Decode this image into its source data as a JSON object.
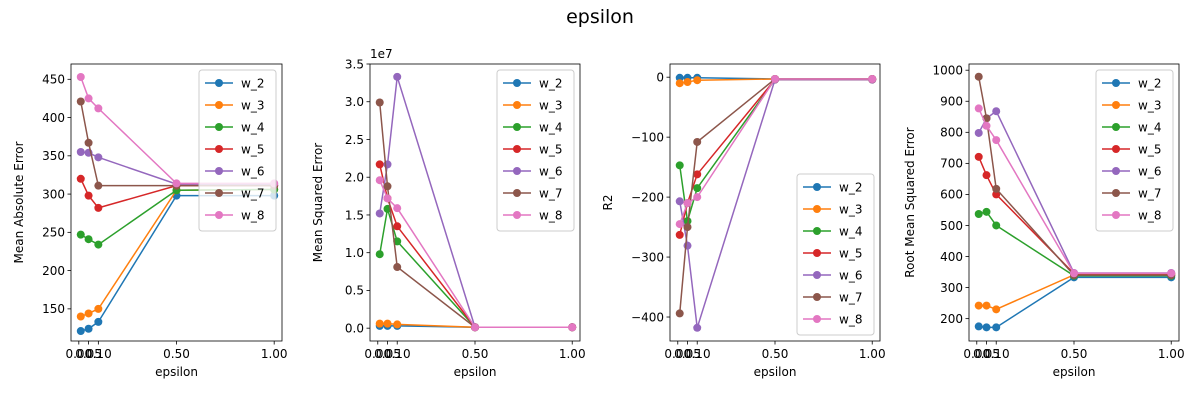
{
  "figure": {
    "title": "epsilon"
  },
  "colors": {
    "w_2": "#1f77b4",
    "w_3": "#ff7f0e",
    "w_4": "#2ca02c",
    "w_5": "#d62728",
    "w_6": "#9467bd",
    "w_7": "#8c564b",
    "w_8": "#e377c2"
  },
  "chart_data": [
    {
      "type": "line",
      "xlabel": "epsilon",
      "ylabel": "Mean Absolute Error",
      "x": [
        0.01,
        0.05,
        0.1,
        0.5,
        1.0
      ],
      "xticks": [
        0.0,
        0.05,
        0.1,
        0.5,
        1.0
      ],
      "xtick_labels": [
        "0.00",
        "0.05",
        "0.10",
        "0.50",
        "1.00"
      ],
      "xlim": [
        -0.04,
        1.04
      ],
      "ylim": [
        108,
        470
      ],
      "yticks": [
        150,
        200,
        250,
        300,
        350,
        400,
        450
      ],
      "ytick_labels": [
        "150",
        "200",
        "250",
        "300",
        "350",
        "400",
        "450"
      ],
      "y_offset_text": "",
      "legend": "upper right",
      "series": [
        {
          "name": "w_2",
          "values": [
            121,
            124,
            133,
            298,
            298
          ]
        },
        {
          "name": "w_3",
          "values": [
            140,
            144,
            150,
            305,
            306
          ]
        },
        {
          "name": "w_4",
          "values": [
            247,
            241,
            234,
            305,
            306
          ]
        },
        {
          "name": "w_5",
          "values": [
            320,
            298,
            282,
            311,
            311
          ]
        },
        {
          "name": "w_6",
          "values": [
            355,
            354,
            348,
            313,
            313
          ]
        },
        {
          "name": "w_7",
          "values": [
            421,
            367,
            311,
            311,
            311
          ]
        },
        {
          "name": "w_8",
          "values": [
            453,
            425,
            412,
            314,
            314
          ]
        }
      ]
    },
    {
      "type": "line",
      "xlabel": "epsilon",
      "ylabel": "Mean Squared Error",
      "x": [
        0.01,
        0.05,
        0.1,
        0.5,
        1.0
      ],
      "xticks": [
        0.0,
        0.05,
        0.1,
        0.5,
        1.0
      ],
      "xtick_labels": [
        "0.00",
        "0.05",
        "0.10",
        "0.50",
        "1.00"
      ],
      "xlim": [
        -0.04,
        1.04
      ],
      "ylim": [
        -0.17,
        3.5
      ],
      "yticks": [
        0.0,
        0.5,
        1.0,
        1.5,
        2.0,
        2.5,
        3.0,
        3.5
      ],
      "ytick_labels": [
        "0.0",
        "0.5",
        "1.0",
        "1.5",
        "2.0",
        "2.5",
        "3.0",
        "3.5"
      ],
      "y_offset_text": "1e7",
      "legend": "upper right",
      "series": [
        {
          "name": "w_2",
          "values": [
            0.03,
            0.03,
            0.03,
            0.012,
            0.012
          ]
        },
        {
          "name": "w_3",
          "values": [
            0.06,
            0.06,
            0.05,
            0.012,
            0.012
          ]
        },
        {
          "name": "w_4",
          "values": [
            0.98,
            1.58,
            1.15,
            0.012,
            0.012
          ]
        },
        {
          "name": "w_5",
          "values": [
            2.17,
            1.72,
            1.35,
            0.012,
            0.012
          ]
        },
        {
          "name": "w_6",
          "values": [
            1.52,
            2.17,
            3.33,
            0.012,
            0.012
          ]
        },
        {
          "name": "w_7",
          "values": [
            2.99,
            1.88,
            0.81,
            0.012,
            0.012
          ]
        },
        {
          "name": "w_8",
          "values": [
            1.96,
            1.72,
            1.59,
            0.012,
            0.012
          ]
        }
      ]
    },
    {
      "type": "line",
      "xlabel": "epsilon",
      "ylabel": "R2",
      "x": [
        0.01,
        0.05,
        0.1,
        0.5,
        1.0
      ],
      "xticks": [
        0.0,
        0.05,
        0.1,
        0.5,
        1.0
      ],
      "xtick_labels": [
        "0.00",
        "0.05",
        "0.10",
        "0.50",
        "1.00"
      ],
      "xlim": [
        -0.04,
        1.04
      ],
      "ylim": [
        -440,
        22
      ],
      "yticks": [
        -400,
        -300,
        -200,
        -100,
        0
      ],
      "ytick_labels": [
        "−400",
        "−300",
        "−200",
        "−100",
        "0"
      ],
      "y_offset_text": "",
      "legend": "lower right",
      "series": [
        {
          "name": "w_2",
          "values": [
            -1,
            -1,
            -1,
            -3,
            -3
          ]
        },
        {
          "name": "w_3",
          "values": [
            -10,
            -8,
            -5,
            -3,
            -3
          ]
        },
        {
          "name": "w_4",
          "values": [
            -147,
            -240,
            -185,
            -4,
            -4
          ]
        },
        {
          "name": "w_5",
          "values": [
            -263,
            -210,
            -162,
            -4,
            -4
          ]
        },
        {
          "name": "w_6",
          "values": [
            -207,
            -281,
            -418,
            -4,
            -4
          ]
        },
        {
          "name": "w_7",
          "values": [
            -394,
            -250,
            -108,
            -3,
            -3
          ]
        },
        {
          "name": "w_8",
          "values": [
            -245,
            -210,
            -200,
            -3,
            -3
          ]
        }
      ]
    },
    {
      "type": "line",
      "xlabel": "epsilon",
      "ylabel": "Root Mean Squared Error",
      "x": [
        0.01,
        0.05,
        0.1,
        0.5,
        1.0
      ],
      "xticks": [
        0.0,
        0.05,
        0.1,
        0.5,
        1.0
      ],
      "xtick_labels": [
        "0.00",
        "0.05",
        "0.10",
        "0.50",
        "1.00"
      ],
      "xlim": [
        -0.04,
        1.04
      ],
      "ylim": [
        128,
        1020
      ],
      "yticks": [
        200,
        300,
        400,
        500,
        600,
        700,
        800,
        900,
        1000
      ],
      "ytick_labels": [
        "200",
        "300",
        "400",
        "500",
        "600",
        "700",
        "800",
        "900",
        "1000"
      ],
      "y_offset_text": "",
      "legend": "upper right",
      "series": [
        {
          "name": "w_2",
          "values": [
            175,
            172,
            172,
            333,
            333
          ]
        },
        {
          "name": "w_3",
          "values": [
            242,
            242,
            230,
            341,
            341
          ]
        },
        {
          "name": "w_4",
          "values": [
            537,
            544,
            500,
            338,
            338
          ]
        },
        {
          "name": "w_5",
          "values": [
            721,
            662,
            600,
            345,
            345
          ]
        },
        {
          "name": "w_6",
          "values": [
            798,
            845,
            868,
            347,
            347
          ]
        },
        {
          "name": "w_7",
          "values": [
            979,
            845,
            618,
            340,
            340
          ]
        },
        {
          "name": "w_8",
          "values": [
            877,
            821,
            775,
            346,
            346
          ]
        }
      ]
    }
  ]
}
